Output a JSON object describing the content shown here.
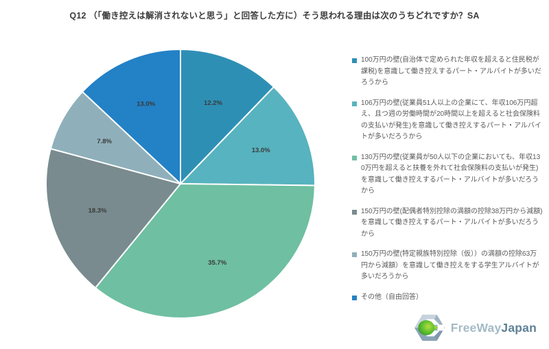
{
  "title": "Q12 （「働き控えは解消されないと思う」と回答した方に）そう思われる理由は次のうちどれですか？SA",
  "chart_data": {
    "type": "pie",
    "start_angle_deg": 0,
    "direction": "clockwise",
    "legend_position": "right",
    "values": [
      12.2,
      13.0,
      35.7,
      18.3,
      7.8,
      13.0
    ],
    "value_labels": [
      "12.2%",
      "13.0%",
      "35.7%",
      "18.3%",
      "7.8%",
      "13.0%"
    ],
    "colors": [
      "#2e8fb5",
      "#57b3bf",
      "#6fbfa2",
      "#798b8e",
      "#8fb0bb",
      "#2381c6"
    ],
    "labels": [
      "100万円の壁(自治体で定められた年収を超えると住民税が課税)を意識して働き控えするパート・アルバイトが多いだろうから",
      "106万円の壁(従業員51人以上の企業にて、年収106万円超え、且つ週の労働時間が20時間以上を超えると社会保険料の支払いが発生)を意識して働き控えするパート・アルバイトが多いだろうから",
      "130万円の壁(従業員が50人以下の企業においても、年収130万円を超えると扶養を外れて社会保険料の支払いが発生)を意識して働き控えするパート・アルバイトが多いだろうから",
      "150万円の壁(配偶者特別控除の満額の控除38万円から減額)を意識して働き控えするパート・アルバイトが多いだろうから",
      "150万円の壁(特定親族特別控除（仮））の満額の控除63万円から減額）を意識して働き控えをする学生アルバイトが多いだろうから",
      "その他（自由回答）"
    ],
    "label_text_color": "#3a3a3a",
    "legend_text_color": "#595959"
  },
  "logo": {
    "text_light": "FreeWay",
    "text_dark": "Japan",
    "green": "#49ae33",
    "green_light": "#a8d93c"
  }
}
